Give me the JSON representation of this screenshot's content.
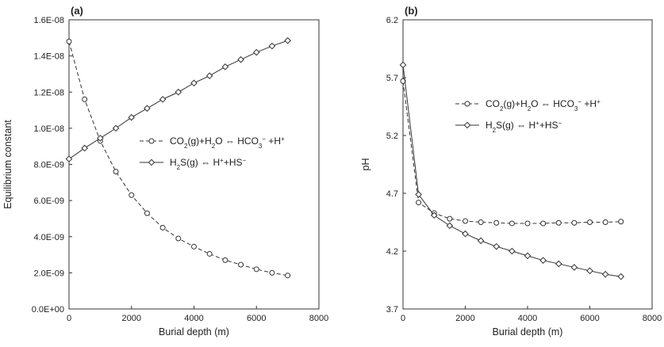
{
  "chart_data": [
    {
      "type": "line",
      "panel_label": "(a)",
      "xlabel": "Burial depth (m)",
      "ylabel": "Equilibrium constant",
      "xlim": [
        0,
        8000
      ],
      "ylim": [
        0,
        1.6e-08
      ],
      "xticks": [
        0,
        2000,
        4000,
        6000,
        8000
      ],
      "xtick_labels": [
        "0",
        "2000",
        "4000",
        "6000",
        "8000"
      ],
      "yticks": [
        0,
        2e-09,
        4e-09,
        6e-09,
        8e-09,
        1e-08,
        1.2e-08,
        1.4e-08,
        1.6e-08
      ],
      "ytick_labels": [
        "0.0E+00",
        "2.0E-09",
        "4.0E-09",
        "6.0E-09",
        "8.0E-09",
        "1.0E-08",
        "1.2E-08",
        "1.4E-08",
        "1.6E-08"
      ],
      "grid": false,
      "legend_position": "center-right",
      "x": [
        0,
        500,
        1000,
        1500,
        2000,
        2500,
        3000,
        3500,
        4000,
        4500,
        5000,
        5500,
        6000,
        6500,
        7000
      ],
      "series": [
        {
          "name": "CO₂(g)+H₂O ⇔ HCO₃⁻ +H⁺",
          "style": "dashed",
          "marker": "circle",
          "values": [
            1.48e-08,
            1.16e-08,
            9.3e-09,
            7.6e-09,
            6.3e-09,
            5.3e-09,
            4.5e-09,
            3.9e-09,
            3.45e-09,
            3.05e-09,
            2.7e-09,
            2.45e-09,
            2.2e-09,
            2e-09,
            1.85e-09
          ]
        },
        {
          "name": "H₂S(g) ⇔ H⁺+HS⁻",
          "style": "solid",
          "marker": "diamond",
          "values": [
            8.3e-09,
            8.9e-09,
            9.45e-09,
            1e-08,
            1.06e-08,
            1.11e-08,
            1.16e-08,
            1.2e-08,
            1.25e-08,
            1.29e-08,
            1.34e-08,
            1.38e-08,
            1.42e-08,
            1.455e-08,
            1.485e-08
          ]
        }
      ]
    },
    {
      "type": "line",
      "panel_label": "(b)",
      "xlabel": "Burial depth (m)",
      "ylabel": "pH",
      "xlim": [
        0,
        8000
      ],
      "ylim": [
        3.7,
        6.2
      ],
      "xticks": [
        0,
        2000,
        4000,
        6000,
        8000
      ],
      "xtick_labels": [
        "0",
        "2000",
        "4000",
        "6000",
        "8000"
      ],
      "yticks": [
        3.7,
        4.2,
        4.7,
        5.2,
        5.7,
        6.2
      ],
      "ytick_labels": [
        "3.7",
        "4.2",
        "4.7",
        "5.2",
        "5.7",
        "6.2"
      ],
      "grid": false,
      "legend_position": "top-right",
      "x": [
        0,
        500,
        1000,
        1500,
        2000,
        2500,
        3000,
        3500,
        4000,
        4500,
        5000,
        5500,
        6000,
        6500,
        7000
      ],
      "series": [
        {
          "name": "CO₂(g)+H₂O ⇔ HCO₃⁻ +H⁺",
          "style": "dashed",
          "marker": "circle",
          "values": [
            5.67,
            4.62,
            4.53,
            4.48,
            4.46,
            4.45,
            4.445,
            4.44,
            4.44,
            4.44,
            4.445,
            4.445,
            4.45,
            4.45,
            4.455
          ]
        },
        {
          "name": "H₂S(g) ⇔ H⁺+HS⁻",
          "style": "solid",
          "marker": "diamond",
          "values": [
            5.81,
            4.69,
            4.51,
            4.42,
            4.35,
            4.29,
            4.24,
            4.2,
            4.16,
            4.12,
            4.09,
            4.06,
            4.03,
            4.0,
            3.98
          ]
        }
      ]
    }
  ]
}
